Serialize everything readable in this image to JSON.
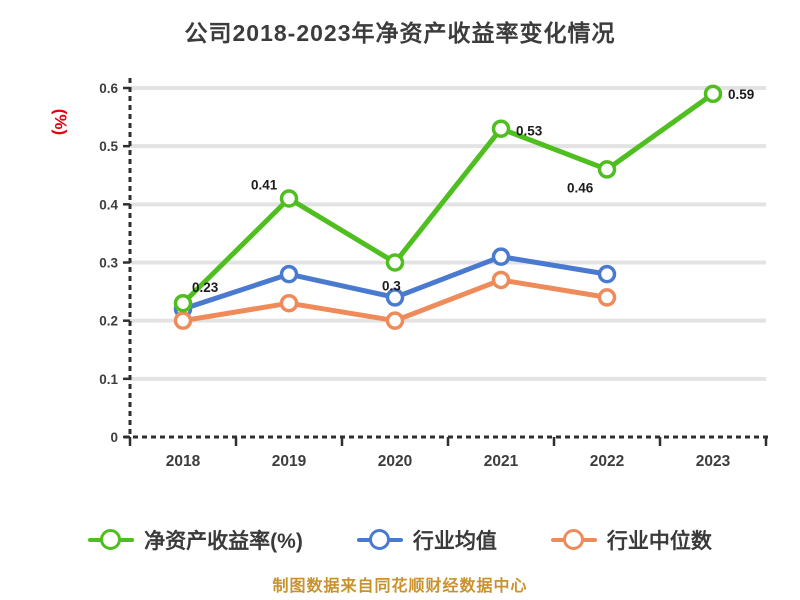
{
  "title": "公司2018-2023年净资产收益率变化情况",
  "y_axis_unit": "(%)",
  "footer": "制图数据来自同花顺财经数据中心",
  "colors": {
    "title_text": "#3c3c3c",
    "axis_line": "#2f2f2f",
    "gridline": "#e3e3e3",
    "tick_label": "#3d3d3d",
    "point_label": "#1b1b1b",
    "y_unit_red": "#e60012",
    "footer_gold": "#c9922d",
    "series_green": "#4fbe1f",
    "series_blue": "#4a7ad0",
    "series_orange": "#ef8b5a"
  },
  "chart_data": {
    "type": "line",
    "title": "公司2018-2023年净资产收益率变化情况",
    "x": [
      "2018",
      "2019",
      "2020",
      "2021",
      "2022",
      "2023"
    ],
    "xlabel": "",
    "ylabel": "(%)",
    "ylim": [
      0,
      0.6
    ],
    "y_ticks": [
      "0.6",
      "0.5",
      "0.4",
      "0.3",
      "0.2",
      "0.1",
      "0"
    ],
    "grid": true,
    "legend_position": "bottom",
    "series": [
      {
        "name": "净资产收益率(%)",
        "color": "#4fbe1f",
        "values": [
          0.23,
          0.41,
          0.3,
          0.53,
          0.46,
          0.59
        ],
        "labels": [
          "0.23",
          "0.41",
          "0.3",
          "0.53",
          "0.46",
          "0.59"
        ]
      },
      {
        "name": "行业均值",
        "color": "#4a7ad0",
        "values": [
          0.22,
          0.28,
          0.24,
          0.31,
          0.28,
          null
        ],
        "labels": null
      },
      {
        "name": "行业中位数",
        "color": "#ef8b5a",
        "values": [
          0.2,
          0.23,
          0.2,
          0.27,
          0.24,
          null
        ],
        "labels": null
      }
    ]
  }
}
